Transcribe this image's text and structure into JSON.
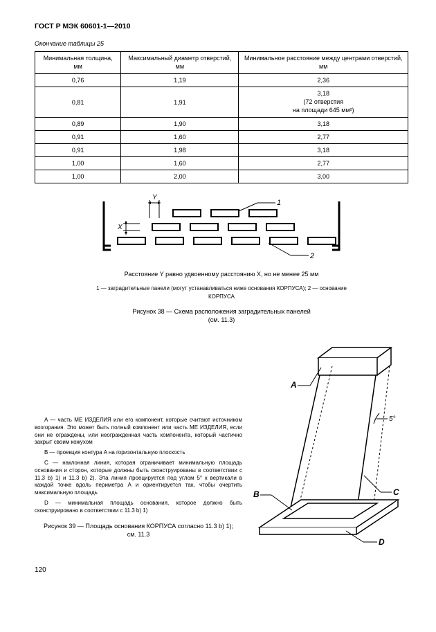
{
  "doc_header": "ГОСТ Р МЭК 60601-1—2010",
  "table_caption": "Окончание таблицы 25",
  "table": {
    "columns": [
      "Минимальная толщина, мм",
      "Максимальный диаметр отверстий, мм",
      "Минимальное расстояние между центрами отверстий, мм"
    ],
    "rows": [
      [
        "0,76",
        "1,19",
        "2,36"
      ],
      [
        "0,81",
        "1,91",
        "3,18\n(72 отверстия\nна площади 645 мм²)"
      ],
      [
        "0,89",
        "1,90",
        "3,18"
      ],
      [
        "0,91",
        "1,60",
        "2,77"
      ],
      [
        "0,91",
        "1,98",
        "3,18"
      ],
      [
        "1,00",
        "1,60",
        "2,77"
      ],
      [
        "1,00",
        "2,00",
        "3,00"
      ]
    ]
  },
  "fig38": {
    "note": "Расстояние Y равно удвоенному расстоянию X, но не менее 25 мм",
    "legend": "1 — заградительные панели (могут устанавливаться ниже основания КОРПУСА); 2 — основание КОРПУСА",
    "caption_line1": "Рисунок 38 — Схема расположения заградительных панелей",
    "caption_line2": "(см. 11.3)",
    "label_x": "X",
    "label_y": "Y",
    "label_1": "1",
    "label_2": "2"
  },
  "fig39": {
    "text_a": "A — часть МЕ ИЗДЕЛИЯ или его компонент, которые считают источником возгорания. Это может быть полный компонент или часть МЕ ИЗДЕЛИЯ, если они не ограждены, или неогражденная часть компонента, который частично закрыт своим кожухом",
    "text_b": "B — проекция контура A на горизонтальную плоскость",
    "text_c": "C — наклонная линия, которая ограничивает минимальную площадь основания и сторон, которые должны быть сконструированы в соответствии с 11.3 b) 1) и 11.3 b) 2). Эта линия проецируется под углом 5° к вертикали в каждой точке вдоль периметра A и ориентируется так, чтобы очертить максимальную площадь",
    "text_d": "D — минимальная площадь основания, которое должно быть сконструировано в соответствии с 11.3 b) 1)",
    "caption_line1": "Рисунок 39 — Площадь основания КОРПУСА согласно 11.3 b) 1);",
    "caption_line2": "см. 11.3",
    "label_a": "A",
    "label_b": "B",
    "label_c": "C",
    "label_d": "D",
    "label_5": "5°"
  },
  "page_number": "120",
  "colors": {
    "text": "#000000",
    "background": "#ffffff",
    "border": "#000000"
  }
}
